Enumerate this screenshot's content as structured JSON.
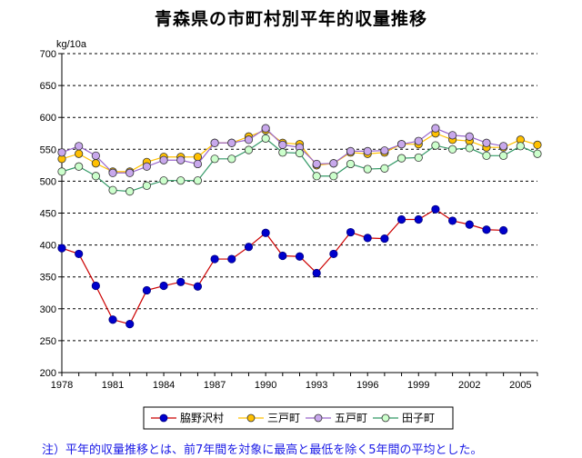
{
  "chart_data": {
    "type": "line",
    "title": "青森県の市町村別平年的収量推移",
    "ylabel": "kg/10a",
    "xlabel": "",
    "ylim": [
      200,
      700
    ],
    "yticks": [
      200,
      250,
      300,
      350,
      400,
      450,
      500,
      550,
      600,
      650,
      700
    ],
    "xlim": [
      1978,
      2006
    ],
    "xticks": [
      1978,
      1981,
      1984,
      1987,
      1990,
      1993,
      1996,
      1999,
      2002,
      2005
    ],
    "x": [
      1978,
      1979,
      1980,
      1981,
      1982,
      1983,
      1984,
      1985,
      1986,
      1987,
      1988,
      1989,
      1990,
      1991,
      1992,
      1993,
      1994,
      1995,
      1996,
      1997,
      1998,
      1999,
      2000,
      2001,
      2002,
      2003,
      2004,
      2005,
      2006
    ],
    "series": [
      {
        "name": "三戸町",
        "color": "#ffc000",
        "marker_fill": "#ffc000",
        "values": [
          535,
          543,
          528,
          515,
          515,
          530,
          538,
          538,
          538,
          560,
          560,
          570,
          580,
          560,
          558,
          525,
          528,
          545,
          543,
          545,
          558,
          558,
          575,
          565,
          563,
          553,
          553,
          565,
          557
        ]
      },
      {
        "name": "五戸町",
        "color": "#9966cc",
        "marker_fill": "#c8a8ec",
        "values": [
          545,
          555,
          540,
          513,
          513,
          523,
          533,
          533,
          527,
          560,
          560,
          565,
          583,
          557,
          553,
          527,
          528,
          547,
          547,
          548,
          558,
          563,
          583,
          572,
          570,
          560,
          555,
          null,
          null
        ]
      },
      {
        "name": "田子町",
        "color": "#339966",
        "marker_fill": "#ccffcc",
        "values": [
          515,
          523,
          508,
          486,
          484,
          493,
          501,
          501,
          501,
          535,
          535,
          549,
          567,
          545,
          544,
          508,
          508,
          527,
          519,
          520,
          536,
          537,
          556,
          550,
          552,
          540,
          540,
          555,
          543
        ]
      },
      {
        "name": "脇野沢村",
        "color": "#cc0000",
        "marker_fill": "#0000cc",
        "values": [
          395,
          386,
          336,
          283,
          276,
          329,
          336,
          342,
          335,
          378,
          378,
          397,
          419,
          383,
          382,
          356,
          386,
          420,
          411,
          410,
          440,
          440,
          456,
          438,
          432,
          424,
          423,
          null,
          null
        ]
      }
    ],
    "legend": [
      "脇野沢村",
      "三戸町",
      "五戸町",
      "田子町"
    ],
    "legend_position": "bottom",
    "grid": true
  },
  "footnote": "注）平年的収量推移とは、前7年間を対象に最高と最低を除く5年間の平均とした。"
}
